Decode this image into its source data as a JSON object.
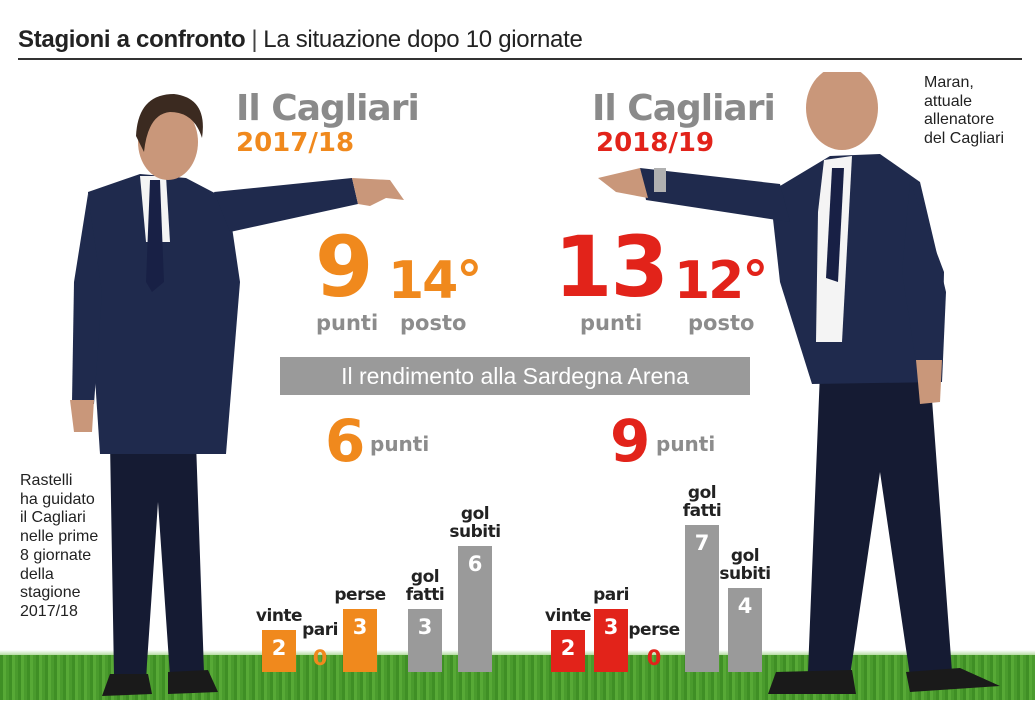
{
  "header": {
    "title_bold": "Stagioni a confronto",
    "separator": "|",
    "title_rest": "La situazione dopo 10 giornate"
  },
  "colors": {
    "season_2017": "#f0891d",
    "season_2018": "#e2231a",
    "gol": "#9a9a9a"
  },
  "left": {
    "team": "Il Cagliari",
    "season": "2017/18",
    "points_value": "9",
    "points_unit": "punti",
    "position_value": "14°",
    "position_unit": "posto",
    "home_points_value": "6",
    "home_points_unit": "punti",
    "note": [
      "Rastelli",
      "ha guidato",
      "il Cagliari",
      "nelle prime",
      "8 giornate",
      "della",
      "stagione",
      "2017/18"
    ]
  },
  "right": {
    "team": "Il Cagliari",
    "season": "2018/19",
    "points_value": "13",
    "points_unit": "punti",
    "position_value": "12°",
    "position_unit": "posto",
    "home_points_value": "9",
    "home_points_unit": "punti",
    "note": [
      "Maran,",
      "attuale",
      "allenatore",
      "del Cagliari"
    ]
  },
  "banner": {
    "text": "Il rendimento  alla Sardegna Arena"
  },
  "chart_data": [
    {
      "type": "bar",
      "title": "2017/18",
      "categories": [
        "vinte",
        "pari",
        "perse",
        "gol fatti",
        "gol subiti"
      ],
      "values": [
        2,
        0,
        3,
        3,
        6
      ],
      "ylim": [
        0,
        7
      ]
    },
    {
      "type": "bar",
      "title": "2018/19",
      "categories": [
        "vinte",
        "pari",
        "perse",
        "gol fatti",
        "gol subiti"
      ],
      "values": [
        2,
        3,
        0,
        7,
        4
      ],
      "ylim": [
        0,
        7
      ]
    }
  ]
}
